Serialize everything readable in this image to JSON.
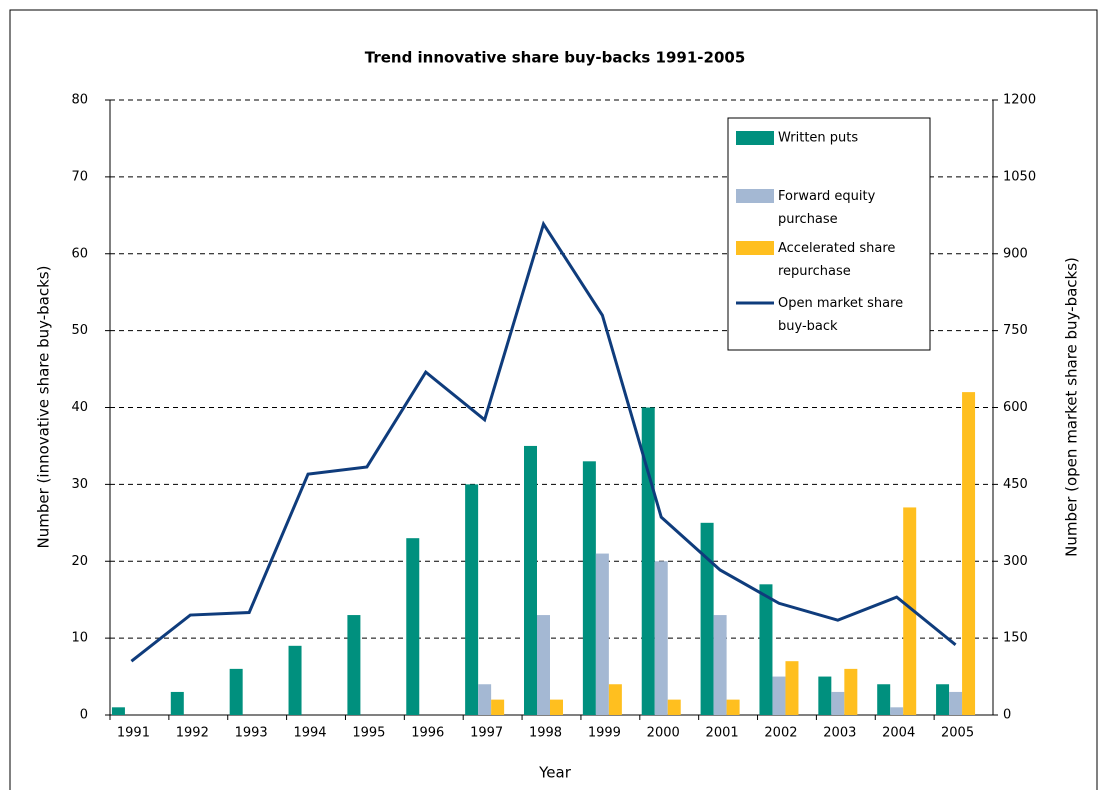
{
  "chart_data": {
    "type": "bar",
    "title": "Trend innovative share buy-backs 1991-2005",
    "x_label": "Year",
    "y_label": "Number (innovative share buy-backs)",
    "y2_label": "Number (open market share buy-backs)",
    "categories": [
      "1991",
      "1992",
      "1993",
      "1994",
      "1995",
      "1996",
      "1997",
      "1998",
      "1999",
      "2000",
      "2001",
      "2002",
      "2003",
      "2004",
      "2005"
    ],
    "series": [
      {
        "name": "Written puts",
        "color": "#00907e",
        "type": "bar",
        "values": [
          1,
          3,
          6,
          9,
          13,
          23,
          30,
          35,
          33,
          40,
          25,
          17,
          5,
          4,
          4
        ]
      },
      {
        "name": "Forward equity purchase",
        "color": "#a4b8d3",
        "type": "bar",
        "values": [
          0,
          0,
          0,
          0,
          0,
          0,
          4,
          13,
          21,
          20,
          13,
          5,
          3,
          1,
          3
        ]
      },
      {
        "name": "Accelerated share repurchase",
        "color": "#ffbf1f",
        "type": "bar",
        "values": [
          0,
          0,
          0,
          0,
          0,
          0,
          2,
          2,
          4,
          2,
          2,
          7,
          6,
          27,
          42
        ]
      },
      {
        "name": "Open market share buy-back",
        "color": "#0f3c7c",
        "type": "line",
        "axis": "y2",
        "values": [
          105,
          195,
          200,
          470,
          484,
          669,
          576,
          958,
          780,
          386,
          283,
          218,
          185,
          230,
          137
        ]
      }
    ],
    "ylim": [
      0,
      80
    ],
    "yticks": [
      0,
      10,
      20,
      30,
      40,
      50,
      60,
      70,
      80
    ],
    "y2lim": [
      0,
      1200
    ],
    "y2ticks": [
      0,
      150,
      300,
      450,
      600,
      750,
      900,
      1050,
      1200
    ],
    "grid": true,
    "legend": "top-right"
  }
}
